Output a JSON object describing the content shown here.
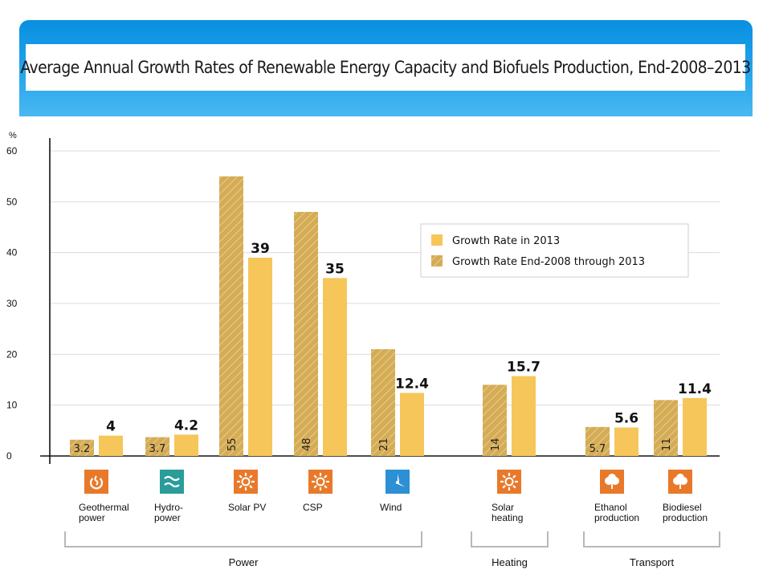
{
  "title": "Average Annual Growth Rates of Renewable Energy Capacity and Biofuels Production, End-2008–2013",
  "colors": {
    "banner": "#1da1ea",
    "bar_2013": "#f6c65a",
    "bar_period": "#d4ac57",
    "hatch": "#f2d68e",
    "icon_orange": "#e8792a",
    "icon_teal": "#2a9c9a",
    "icon_blue": "#2d8fd4"
  },
  "chart_data": {
    "type": "bar",
    "ylabel": "%",
    "ylim": [
      0,
      60
    ],
    "yticks": [
      0,
      10,
      20,
      30,
      40,
      50,
      60
    ],
    "grid": true,
    "legend_position": "top-right",
    "categories": [
      {
        "key": "geothermal",
        "label": [
          "Geothermal",
          "power"
        ],
        "icon": "geothermal-icon",
        "icon_color": "orange"
      },
      {
        "key": "hydropower",
        "label": [
          "Hydro-",
          "power"
        ],
        "icon": "hydropower-icon",
        "icon_color": "teal"
      },
      {
        "key": "solar_pv",
        "label": [
          "Solar PV"
        ],
        "icon": "sun-icon",
        "icon_color": "orange"
      },
      {
        "key": "csp",
        "label": [
          "CSP"
        ],
        "icon": "sun-icon",
        "icon_color": "orange"
      },
      {
        "key": "wind",
        "label": [
          "Wind"
        ],
        "icon": "wind-turbine-icon",
        "icon_color": "blue"
      },
      {
        "key": "solar_heating",
        "label": [
          "Solar",
          "heating"
        ],
        "icon": "sun-icon",
        "icon_color": "orange"
      },
      {
        "key": "ethanol",
        "label": [
          "Ethanol",
          "production"
        ],
        "icon": "leaf-icon",
        "icon_color": "orange"
      },
      {
        "key": "biodiesel",
        "label": [
          "Biodiesel",
          "production"
        ],
        "icon": "leaf-icon",
        "icon_color": "orange"
      }
    ],
    "series": [
      {
        "name": "Growth Rate End-2008 through 2013",
        "style": "hatched",
        "values": [
          3.2,
          3.7,
          55,
          48,
          21,
          14,
          5.7,
          11
        ],
        "value_labels": [
          "3.2",
          "3.7",
          "55",
          "48",
          "21",
          "14",
          "5.7",
          "11"
        ]
      },
      {
        "name": "Growth Rate in 2013",
        "style": "solid",
        "values": [
          4,
          4.2,
          39,
          35,
          12.4,
          15.7,
          5.6,
          11.4
        ],
        "value_labels": [
          "4",
          "4.2",
          "39",
          "35",
          "12.4",
          "15.7",
          "5.6",
          "11.4"
        ]
      }
    ],
    "legend": [
      "Growth Rate in 2013",
      "Growth Rate End-2008 through 2013"
    ],
    "groups": [
      {
        "label": "Power",
        "categories": [
          "geothermal",
          "hydropower",
          "solar_pv",
          "csp",
          "wind"
        ]
      },
      {
        "label": "Heating",
        "categories": [
          "solar_heating"
        ]
      },
      {
        "label": "Transport",
        "categories": [
          "ethanol",
          "biodiesel"
        ]
      }
    ]
  }
}
